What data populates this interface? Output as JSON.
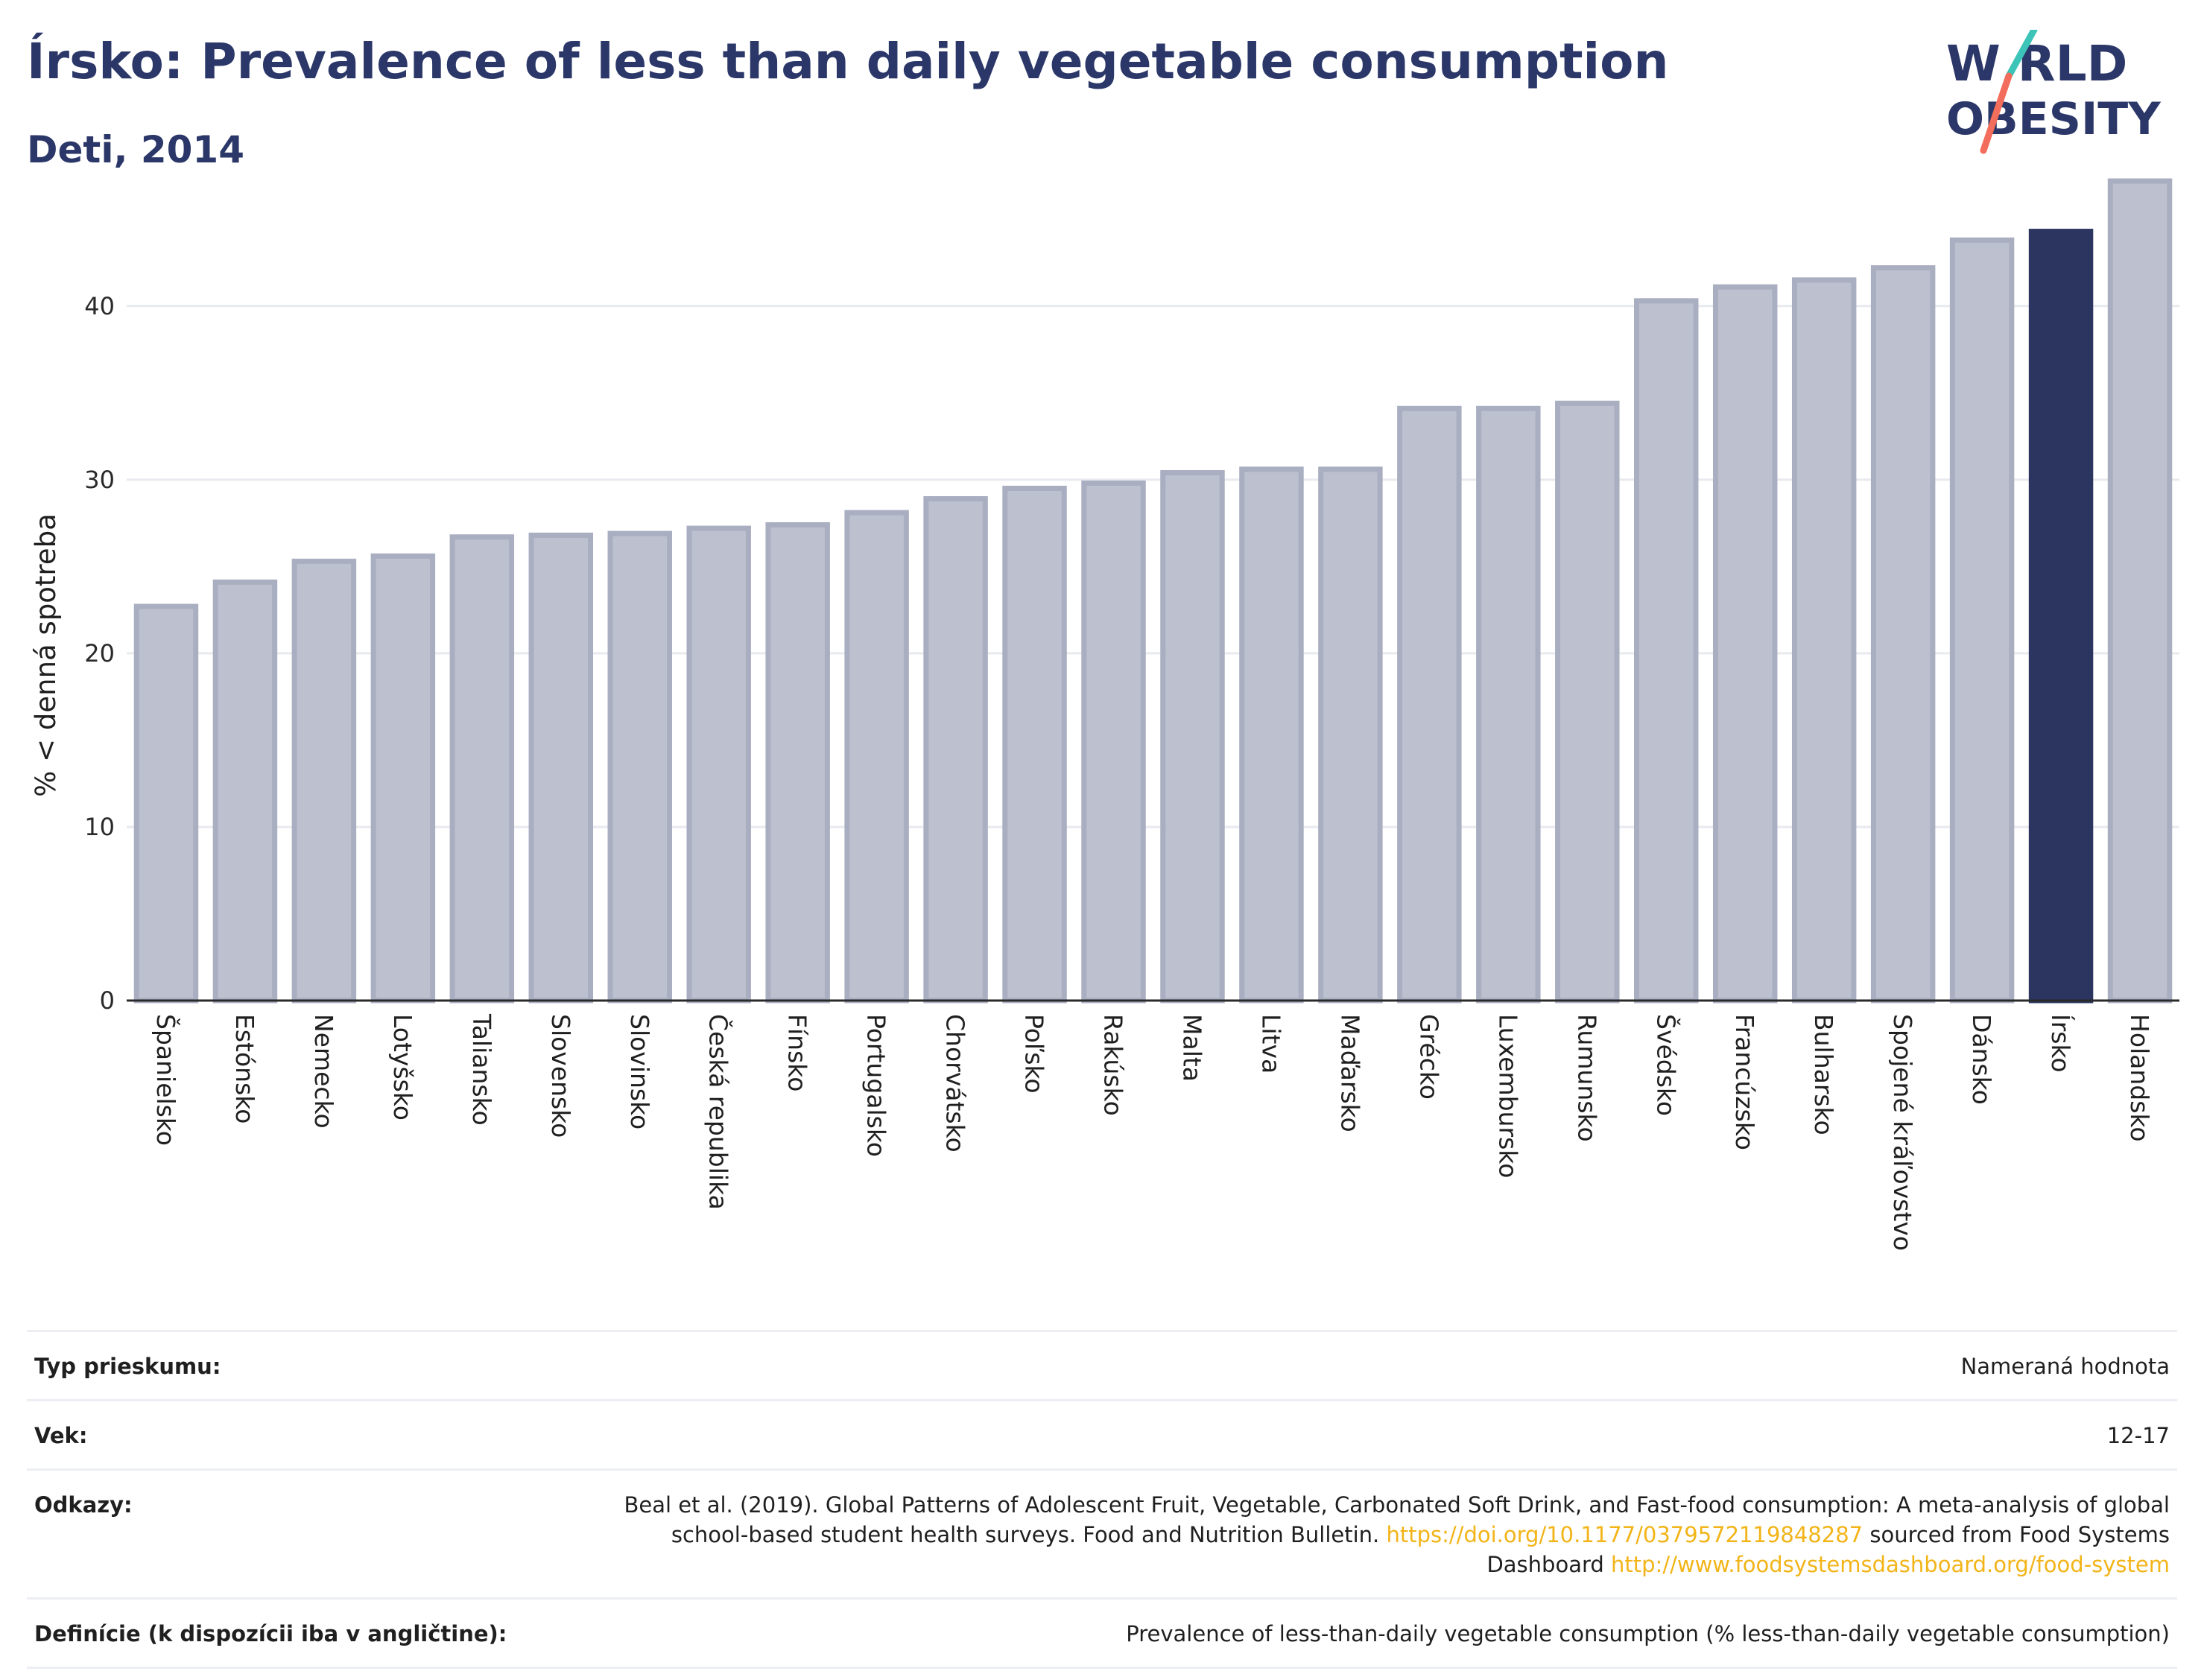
{
  "header": {
    "title": "Írsko: Prevalence of less than daily vegetable consumption",
    "subtitle": "Deti, 2014"
  },
  "logo": {
    "line1": "W RLD",
    "line2": "OBESITY",
    "accent_colors": [
      "#3cc4b8",
      "#f26d5b"
    ]
  },
  "colors": {
    "bar": "#bcc0cf",
    "bar_border": "#a9aec1",
    "highlight": "#2b3560",
    "grid": "#e8eaef",
    "axis": "#2a2a2a"
  },
  "chart_data": {
    "type": "bar",
    "title": "Írsko: Prevalence of less than daily vegetable consumption",
    "subtitle": "Deti, 2014",
    "ylabel": "% < denná spotreba",
    "xlabel": "",
    "ylim": [
      0,
      47.5
    ],
    "yticks": [
      0,
      10,
      20,
      30,
      40
    ],
    "grid": true,
    "highlight": "Írsko",
    "categories": [
      "Španielsko",
      "Estónsko",
      "Nemecko",
      "Lotyšsko",
      "Taliansko",
      "Slovensko",
      "Slovinsko",
      "Česká republika",
      "Fínsko",
      "Portugalsko",
      "Chorvátsko",
      "Poľsko",
      "Rakúsko",
      "Malta",
      "Litva",
      "Maďarsko",
      "Grécko",
      "Luxembursko",
      "Rumunsko",
      "Švédsko",
      "Francúzsko",
      "Bulharsko",
      "Spojené kráľovstvo",
      "Dánsko",
      "Írsko",
      "Holandsko"
    ],
    "values": [
      22.7,
      24.1,
      25.3,
      25.6,
      26.7,
      26.8,
      26.9,
      27.2,
      27.4,
      28.1,
      28.9,
      29.5,
      29.8,
      30.4,
      30.6,
      30.6,
      34.1,
      34.1,
      34.4,
      40.3,
      41.1,
      41.5,
      42.2,
      43.8,
      44.3,
      47.2
    ]
  },
  "info": [
    {
      "key": "Typ prieskumu:",
      "value": "Nameraná hodnota"
    },
    {
      "key": "Vek:",
      "value": "12-17"
    },
    {
      "key": "Odkazy:",
      "value": "Beal et al. (2019). Global Patterns of Adolescent Fruit, Vegetable, Carbonated Soft Drink, and Fast-food consumption: A meta-analysis of global school-based student health surveys. Food and Nutrition Bulletin.",
      "link1": "https://doi.org/10.1177/0379572119848287",
      "middle": "sourced from Food Systems Dashboard",
      "link2": "http://www.foodsystemsdashboard.org/food-system"
    },
    {
      "key": "Definície (k dispozícii iba v angličtine):",
      "value": "Prevalence of less-than-daily vegetable consumption (% less-than-daily vegetable consumption)"
    }
  ]
}
